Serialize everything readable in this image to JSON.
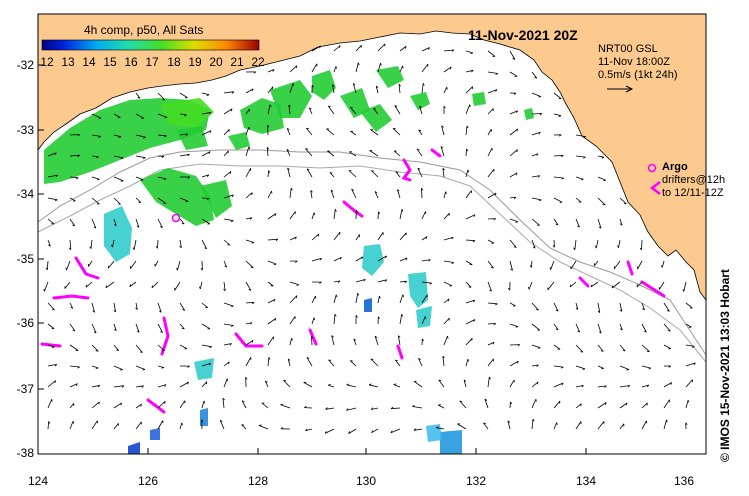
{
  "title": "11-Nov-2021 20Z",
  "colorbar": {
    "label": "4h comp, p50, All Sats",
    "ticks": [
      "12",
      "13",
      "14",
      "15",
      "16",
      "17",
      "18",
      "19",
      "20",
      "21",
      "22"
    ]
  },
  "current_legend": {
    "product": "NRT00 GSL",
    "time": "11-Nov 18:00Z",
    "scale": "0.5m/s (1kt 24h)"
  },
  "argo_legend": {
    "argo_label": "Argo",
    "drifters_label": "drifters@12h",
    "drifters_range": "to 12/11-12Z"
  },
  "axes": {
    "lon_ticks": [
      "124",
      "126",
      "128",
      "130",
      "132",
      "134",
      "136"
    ],
    "lat_ticks": [
      "-32",
      "-33",
      "-34",
      "-35",
      "-36",
      "-37",
      "-38"
    ]
  },
  "credit": "© IMOS 15-Nov-2021 13:03 Hobart",
  "colors": {
    "land": "#fcc98e",
    "sst_warm": "#22cc33",
    "sst_cool": "#33cccc",
    "drifter": "#ff00ff",
    "isobath": "#999999"
  }
}
